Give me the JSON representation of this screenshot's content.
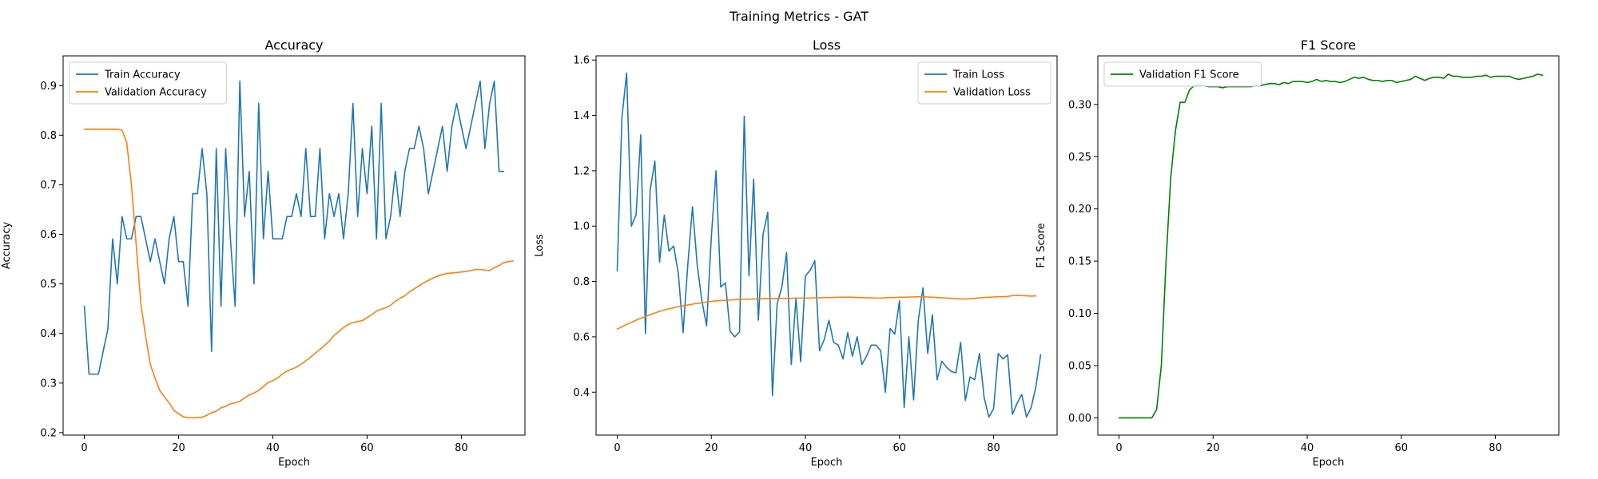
{
  "figure": {
    "suptitle": "Training Metrics - GAT"
  },
  "chart_data": [
    {
      "type": "line",
      "title": "Accuracy",
      "xlabel": "Epoch",
      "ylabel": "Accuracy",
      "xlim": [
        -4.5,
        93.5
      ],
      "ylim": [
        0.195,
        0.96
      ],
      "xticks": [
        0,
        20,
        40,
        60,
        80
      ],
      "xtick_labels": [
        "0",
        "20",
        "40",
        "60",
        "80"
      ],
      "yticks": [
        0.2,
        0.3,
        0.4,
        0.5,
        0.6,
        0.7,
        0.8,
        0.9
      ],
      "ytick_labels": [
        "0.2",
        "0.3",
        "0.4",
        "0.5",
        "0.6",
        "0.7",
        "0.8",
        "0.9"
      ],
      "legend_position": "top-left",
      "series": [
        {
          "name": "Train Accuracy",
          "color": "#1f77b4",
          "values": [
            0.455,
            0.318,
            0.318,
            0.318,
            0.364,
            0.409,
            0.591,
            0.5,
            0.636,
            0.591,
            0.591,
            0.636,
            0.636,
            0.591,
            0.545,
            0.591,
            0.545,
            0.5,
            0.591,
            0.636,
            0.545,
            0.545,
            0.455,
            0.682,
            0.682,
            0.773,
            0.682,
            0.364,
            0.773,
            0.455,
            0.773,
            0.591,
            0.455,
            0.909,
            0.636,
            0.727,
            0.5,
            0.864,
            0.591,
            0.727,
            0.591,
            0.591,
            0.591,
            0.636,
            0.636,
            0.682,
            0.636,
            0.773,
            0.636,
            0.636,
            0.773,
            0.591,
            0.682,
            0.636,
            0.682,
            0.591,
            0.682,
            0.864,
            0.636,
            0.773,
            0.682,
            0.818,
            0.591,
            0.864,
            0.591,
            0.636,
            0.727,
            0.636,
            0.727,
            0.773,
            0.773,
            0.818,
            0.773,
            0.682,
            0.727,
            0.773,
            0.818,
            0.727,
            0.818,
            0.864,
            0.818,
            0.773,
            0.818,
            0.864,
            0.909,
            0.773,
            0.864,
            0.909,
            0.727,
            0.727
          ]
        },
        {
          "name": "Validation Accuracy",
          "color": "#ff7f0e",
          "values": [
            0.812,
            0.812,
            0.812,
            0.812,
            0.812,
            0.812,
            0.812,
            0.812,
            0.81,
            0.785,
            0.7,
            0.58,
            0.46,
            0.395,
            0.338,
            0.31,
            0.285,
            0.272,
            0.26,
            0.245,
            0.238,
            0.232,
            0.23,
            0.23,
            0.23,
            0.231,
            0.235,
            0.24,
            0.243,
            0.25,
            0.253,
            0.258,
            0.26,
            0.263,
            0.27,
            0.276,
            0.28,
            0.285,
            0.293,
            0.301,
            0.305,
            0.31,
            0.318,
            0.324,
            0.328,
            0.332,
            0.338,
            0.345,
            0.352,
            0.36,
            0.368,
            0.376,
            0.385,
            0.396,
            0.404,
            0.412,
            0.418,
            0.422,
            0.424,
            0.426,
            0.432,
            0.438,
            0.445,
            0.449,
            0.452,
            0.457,
            0.465,
            0.471,
            0.476,
            0.484,
            0.49,
            0.496,
            0.502,
            0.507,
            0.512,
            0.516,
            0.519,
            0.521,
            0.522,
            0.523,
            0.524,
            0.525,
            0.527,
            0.529,
            0.529,
            0.528,
            0.527,
            0.533,
            0.537,
            0.543,
            0.545,
            0.546
          ]
        }
      ]
    },
    {
      "type": "line",
      "title": "Loss",
      "xlabel": "Epoch",
      "ylabel": "Loss",
      "xlim": [
        -4.5,
        93.5
      ],
      "ylim": [
        0.245,
        1.615
      ],
      "xticks": [
        0,
        20,
        40,
        60,
        80
      ],
      "xtick_labels": [
        "0",
        "20",
        "40",
        "60",
        "80"
      ],
      "yticks": [
        0.4,
        0.6,
        0.8,
        1.0,
        1.2,
        1.4,
        1.6
      ],
      "ytick_labels": [
        "0.4",
        "0.6",
        "0.8",
        "1.0",
        "1.2",
        "1.4",
        "1.6"
      ],
      "legend_position": "top-right",
      "series": [
        {
          "name": "Train Loss",
          "color": "#1f77b4",
          "values": [
            0.838,
            1.392,
            1.553,
            1.0,
            1.04,
            1.33,
            0.612,
            1.13,
            1.235,
            0.87,
            1.04,
            0.91,
            0.928,
            0.828,
            0.615,
            0.86,
            1.07,
            0.86,
            0.73,
            0.64,
            0.96,
            1.2,
            0.78,
            0.795,
            0.62,
            0.6,
            0.618,
            1.397,
            0.82,
            1.17,
            0.66,
            0.97,
            1.05,
            0.388,
            0.72,
            0.78,
            0.905,
            0.5,
            0.74,
            0.51,
            0.82,
            0.84,
            0.875,
            0.55,
            0.59,
            0.66,
            0.58,
            0.57,
            0.52,
            0.615,
            0.53,
            0.6,
            0.5,
            0.53,
            0.57,
            0.57,
            0.55,
            0.4,
            0.63,
            0.61,
            0.73,
            0.345,
            0.6,
            0.372,
            0.66,
            0.777,
            0.54,
            0.68,
            0.445,
            0.512,
            0.49,
            0.475,
            0.47,
            0.58,
            0.37,
            0.455,
            0.445,
            0.54,
            0.38,
            0.31,
            0.34,
            0.54,
            0.52,
            0.535,
            0.32,
            0.36,
            0.392,
            0.31,
            0.345,
            0.42,
            0.535
          ]
        },
        {
          "name": "Validation Loss",
          "color": "#ff7f0e",
          "values": [
            0.628,
            0.636,
            0.645,
            0.652,
            0.66,
            0.667,
            0.673,
            0.68,
            0.686,
            0.692,
            0.697,
            0.701,
            0.705,
            0.709,
            0.712,
            0.715,
            0.718,
            0.721,
            0.723,
            0.726,
            0.728,
            0.73,
            0.731,
            0.732,
            0.733,
            0.734,
            0.735,
            0.736,
            0.736,
            0.737,
            0.737,
            0.738,
            0.738,
            0.738,
            0.739,
            0.739,
            0.739,
            0.739,
            0.74,
            0.74,
            0.74,
            0.74,
            0.741,
            0.741,
            0.742,
            0.742,
            0.742,
            0.743,
            0.743,
            0.743,
            0.743,
            0.742,
            0.742,
            0.741,
            0.741,
            0.74,
            0.74,
            0.741,
            0.742,
            0.742,
            0.743,
            0.743,
            0.744,
            0.744,
            0.745,
            0.745,
            0.744,
            0.743,
            0.742,
            0.741,
            0.74,
            0.739,
            0.738,
            0.737,
            0.737,
            0.738,
            0.739,
            0.741,
            0.742,
            0.743,
            0.744,
            0.745,
            0.745,
            0.746,
            0.749,
            0.75,
            0.749,
            0.748,
            0.747,
            0.748
          ]
        }
      ]
    },
    {
      "type": "line",
      "title": "F1 Score",
      "xlabel": "Epoch",
      "ylabel": "F1 Score",
      "xlim": [
        -4.5,
        93.5
      ],
      "ylim": [
        -0.0165,
        0.3465
      ],
      "xticks": [
        0,
        20,
        40,
        60,
        80
      ],
      "xtick_labels": [
        "0",
        "20",
        "40",
        "60",
        "80"
      ],
      "yticks": [
        0.0,
        0.05,
        0.1,
        0.15,
        0.2,
        0.25,
        0.3
      ],
      "ytick_labels": [
        "0.00",
        "0.05",
        "0.10",
        "0.15",
        "0.20",
        "0.25",
        "0.30"
      ],
      "legend_position": "top-left",
      "series": [
        {
          "name": "Validation F1 Score",
          "color": "#008000",
          "values": [
            0,
            0,
            0,
            0,
            0,
            0,
            0,
            0,
            0.008,
            0.05,
            0.15,
            0.23,
            0.275,
            0.302,
            0.302,
            0.314,
            0.318,
            0.319,
            0.318,
            0.317,
            0.317,
            0.317,
            0.316,
            0.317,
            0.317,
            0.317,
            0.317,
            0.317,
            0.317,
            0.318,
            0.318,
            0.319,
            0.32,
            0.32,
            0.319,
            0.321,
            0.32,
            0.322,
            0.322,
            0.322,
            0.321,
            0.322,
            0.324,
            0.322,
            0.323,
            0.322,
            0.322,
            0.321,
            0.322,
            0.324,
            0.326,
            0.325,
            0.326,
            0.324,
            0.323,
            0.323,
            0.322,
            0.323,
            0.323,
            0.321,
            0.322,
            0.323,
            0.324,
            0.327,
            0.325,
            0.323,
            0.325,
            0.326,
            0.326,
            0.325,
            0.329,
            0.327,
            0.327,
            0.326,
            0.326,
            0.326,
            0.327,
            0.327,
            0.328,
            0.326,
            0.327,
            0.327,
            0.327,
            0.327,
            0.325,
            0.324,
            0.325,
            0.326,
            0.327,
            0.329,
            0.328
          ]
        }
      ]
    }
  ]
}
